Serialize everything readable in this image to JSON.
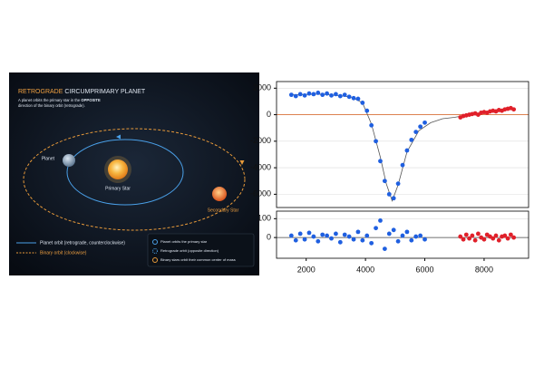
{
  "diagram": {
    "title_highlight": "RETROGRADE",
    "title_rest": "CIRCUMPRIMARY PLANET",
    "subtitle_line1": "A planet orbits the primary star in the",
    "subtitle_emphasis": "OPPOSITE",
    "subtitle_line2": "direction of the binary orbit (retrograde).",
    "labels": {
      "planet": "Planet",
      "primary": "Primary Star",
      "secondary": "Secondary Star"
    },
    "legend": [
      "Planet orbit (retrograde, counterclockwise)",
      "Binary orbit (clockwise)"
    ],
    "key": [
      "Planet orbits the primary star",
      "Retrograde orbit (opposite direction)",
      "Binary stars orbit their common center of mass"
    ]
  },
  "chart_data": [
    {
      "type": "scatter",
      "xlim": [
        1000,
        9500
      ],
      "ylim": [
        -7000,
        2500
      ],
      "yticks": [
        2000,
        0,
        -2000,
        -4000,
        -6000
      ],
      "zero_line_color": "#d9733a",
      "series": [
        {
          "color": "#1f5fe0",
          "x": [
            1500,
            1650,
            1800,
            1950,
            2100,
            2250,
            2400,
            2550,
            2700,
            2850,
            3000,
            3150,
            3300,
            3450,
            3600,
            3750,
            3900,
            4050,
            4200,
            4350,
            4500,
            4650,
            4800,
            4950,
            5100,
            5250,
            5400,
            5550,
            5700,
            5850,
            6000
          ],
          "values": [
            1500,
            1400,
            1550,
            1450,
            1600,
            1550,
            1650,
            1500,
            1600,
            1450,
            1550,
            1400,
            1500,
            1350,
            1250,
            1200,
            900,
            300,
            -800,
            -2000,
            -3500,
            -5000,
            -6000,
            -6300,
            -5200,
            -3800,
            -2700,
            -1900,
            -1300,
            -900,
            -600
          ]
        },
        {
          "color": "#e0202a",
          "x": [
            7200,
            7300,
            7400,
            7500,
            7600,
            7700,
            7800,
            7900,
            8000,
            8100,
            8200,
            8300,
            8400,
            8500,
            8600,
            8700,
            8800,
            8900,
            9000
          ],
          "values": [
            -200,
            -100,
            -50,
            0,
            50,
            100,
            0,
            150,
            200,
            150,
            250,
            300,
            250,
            350,
            300,
            400,
            450,
            500,
            400
          ]
        }
      ],
      "model": {
        "color": "#555555",
        "x": [
          1500,
          2500,
          3500,
          3900,
          4200,
          4500,
          4700,
          4900,
          5100,
          5400,
          5800,
          6200,
          6600,
          7000,
          7500,
          8000,
          8500,
          9000
        ],
        "values": [
          1500,
          1550,
          1350,
          900,
          -700,
          -3200,
          -5200,
          -6500,
          -5300,
          -2800,
          -1200,
          -600,
          -300,
          -200,
          0,
          150,
          300,
          450
        ]
      }
    },
    {
      "type": "scatter",
      "xlim": [
        1000,
        9500
      ],
      "ylim": [
        -110,
        140
      ],
      "yticks": [
        100,
        0
      ],
      "xticks": [
        2000,
        4000,
        6000,
        8000
      ],
      "zero_line_color": "#444444",
      "series": [
        {
          "color": "#1f5fe0",
          "x": [
            1500,
            1650,
            1800,
            1950,
            2100,
            2250,
            2400,
            2550,
            2700,
            2850,
            3000,
            3150,
            3300,
            3450,
            3600,
            3750,
            3900,
            4050,
            4200,
            4350,
            4500,
            4650,
            4800,
            4950,
            5100,
            5250,
            5400,
            5550,
            5700,
            5850,
            6000
          ],
          "values": [
            10,
            -15,
            20,
            -10,
            25,
            5,
            -20,
            15,
            10,
            -5,
            20,
            -25,
            15,
            5,
            -10,
            30,
            -15,
            10,
            -30,
            50,
            90,
            -60,
            20,
            40,
            -20,
            10,
            30,
            -15,
            5,
            10,
            -10
          ]
        },
        {
          "color": "#e0202a",
          "x": [
            7200,
            7300,
            7400,
            7500,
            7600,
            7700,
            7800,
            7900,
            8000,
            8100,
            8200,
            8300,
            8400,
            8500,
            8600,
            8700,
            8800,
            8900,
            9000
          ],
          "values": [
            5,
            -10,
            15,
            -5,
            10,
            -15,
            20,
            0,
            -10,
            15,
            5,
            -5,
            10,
            -15,
            5,
            10,
            -5,
            15,
            0
          ]
        }
      ]
    }
  ]
}
